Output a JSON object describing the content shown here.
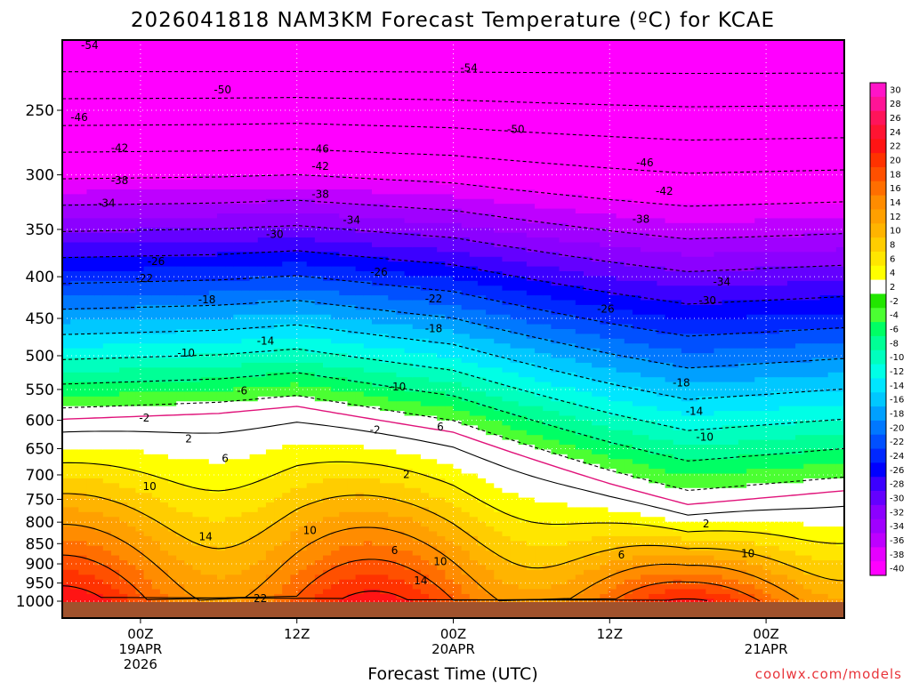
{
  "chart_data": {
    "type": "heatmap",
    "title": "2026041818 NAM3KM Forecast Temperature (ºC) for KCAE",
    "xlabel": "Forecast Time (UTC)",
    "ylabel": "",
    "credit": "coolwx.com/models",
    "y_scale": "log-pressure",
    "y_range": [
      1000,
      200
    ],
    "y_ticks": [
      250,
      300,
      350,
      400,
      450,
      500,
      550,
      600,
      650,
      700,
      750,
      800,
      850,
      900,
      950,
      1000
    ],
    "x_range_hours": [
      0,
      60
    ],
    "x_ticks": [
      {
        "hour": 6,
        "lines": [
          "00Z",
          "19APR",
          "2026"
        ]
      },
      {
        "hour": 18,
        "lines": [
          "12Z"
        ]
      },
      {
        "hour": 30,
        "lines": [
          "00Z",
          "20APR"
        ]
      },
      {
        "hour": 42,
        "lines": [
          "12Z"
        ]
      },
      {
        "hour": 54,
        "lines": [
          "00Z",
          "21APR"
        ]
      }
    ],
    "grid": true,
    "colorbar": {
      "levels": [
        30,
        28,
        26,
        24,
        22,
        20,
        18,
        16,
        14,
        12,
        10,
        8,
        6,
        4,
        2,
        -2,
        -4,
        -6,
        -8,
        -10,
        -12,
        -14,
        -16,
        -18,
        -20,
        -22,
        -24,
        -26,
        -28,
        -30,
        -32,
        -34,
        -36,
        -38,
        -40
      ],
      "colors": [
        "#ff14c8",
        "#ff1496",
        "#ff145a",
        "#ff1432",
        "#ff1414",
        "#ff3200",
        "#ff5000",
        "#ff6e00",
        "#ff8c00",
        "#ffa000",
        "#ffb400",
        "#ffcd00",
        "#ffe600",
        "#ffff00",
        "#ffffff",
        "#22e600",
        "#4bff32",
        "#00ff64",
        "#00ff96",
        "#00ffbe",
        "#00ffe6",
        "#00e6ff",
        "#00c8ff",
        "#00a0ff",
        "#0078ff",
        "#0050ff",
        "#0028ff",
        "#0000ff",
        "#3c00ff",
        "#6400ff",
        "#8c00ff",
        "#a000ff",
        "#be00ff",
        "#e600ff",
        "#ff00ff"
      ]
    },
    "isotherm_labels": [
      {
        "hour": 2.1,
        "p": 208,
        "label": "-54"
      },
      {
        "hour": 31.2,
        "p": 222,
        "label": "-54"
      },
      {
        "hour": 12.3,
        "p": 236,
        "label": "-50"
      },
      {
        "hour": 34.8,
        "p": 264,
        "label": "-50"
      },
      {
        "hour": 1.3,
        "p": 255,
        "label": "-46"
      },
      {
        "hour": 19.8,
        "p": 279,
        "label": "-46"
      },
      {
        "hour": 44.7,
        "p": 290,
        "label": "-46"
      },
      {
        "hour": 4.4,
        "p": 278,
        "label": "-42"
      },
      {
        "hour": 19.8,
        "p": 293,
        "label": "-42"
      },
      {
        "hour": 46.2,
        "p": 314,
        "label": "-42"
      },
      {
        "hour": 4.4,
        "p": 305,
        "label": "-38"
      },
      {
        "hour": 19.8,
        "p": 317,
        "label": "-38"
      },
      {
        "hour": 44.4,
        "p": 340,
        "label": "-38"
      },
      {
        "hour": 3.4,
        "p": 325,
        "label": "-34"
      },
      {
        "hour": 22.2,
        "p": 341,
        "label": "-34"
      },
      {
        "hour": 50.6,
        "p": 406,
        "label": "-34"
      },
      {
        "hour": 16.3,
        "p": 355,
        "label": "-30"
      },
      {
        "hour": 49.5,
        "p": 428,
        "label": "-30"
      },
      {
        "hour": 7.2,
        "p": 383,
        "label": "-26"
      },
      {
        "hour": 24.3,
        "p": 395,
        "label": "-26"
      },
      {
        "hour": 41.7,
        "p": 438,
        "label": "-26"
      },
      {
        "hour": 6.3,
        "p": 402,
        "label": "-22"
      },
      {
        "hour": 28.5,
        "p": 426,
        "label": "-22"
      },
      {
        "hour": 11.1,
        "p": 427,
        "label": "-18"
      },
      {
        "hour": 28.5,
        "p": 463,
        "label": "-18"
      },
      {
        "hour": 47.5,
        "p": 540,
        "label": "-18"
      },
      {
        "hour": 15.6,
        "p": 480,
        "label": "-14"
      },
      {
        "hour": 48.5,
        "p": 585,
        "label": "-14"
      },
      {
        "hour": 9.5,
        "p": 496,
        "label": "-10"
      },
      {
        "hour": 25.7,
        "p": 546,
        "label": "-10"
      },
      {
        "hour": 49.3,
        "p": 629,
        "label": "-10"
      },
      {
        "hour": 13.8,
        "p": 552,
        "label": "-6"
      },
      {
        "hour": 6.3,
        "p": 596,
        "label": "-2"
      },
      {
        "hour": 24.0,
        "p": 617,
        "label": "-2"
      },
      {
        "hour": 9.7,
        "p": 632,
        "label": "2"
      },
      {
        "hour": 26.4,
        "p": 699,
        "label": "2"
      },
      {
        "hour": 49.4,
        "p": 804,
        "label": "2"
      },
      {
        "hour": 12.5,
        "p": 668,
        "label": "6"
      },
      {
        "hour": 29.0,
        "p": 611,
        "label": "6"
      },
      {
        "hour": 25.5,
        "p": 867,
        "label": "6"
      },
      {
        "hour": 42.9,
        "p": 878,
        "label": "6"
      },
      {
        "hour": 6.7,
        "p": 723,
        "label": "10"
      },
      {
        "hour": 19.0,
        "p": 819,
        "label": "10"
      },
      {
        "hour": 29.0,
        "p": 894,
        "label": "10"
      },
      {
        "hour": 52.6,
        "p": 874,
        "label": "10"
      },
      {
        "hour": 11.0,
        "p": 834,
        "label": "14"
      },
      {
        "hour": 27.5,
        "p": 944,
        "label": "14"
      },
      {
        "hour": 15.2,
        "p": 993,
        "label": "22"
      }
    ]
  }
}
